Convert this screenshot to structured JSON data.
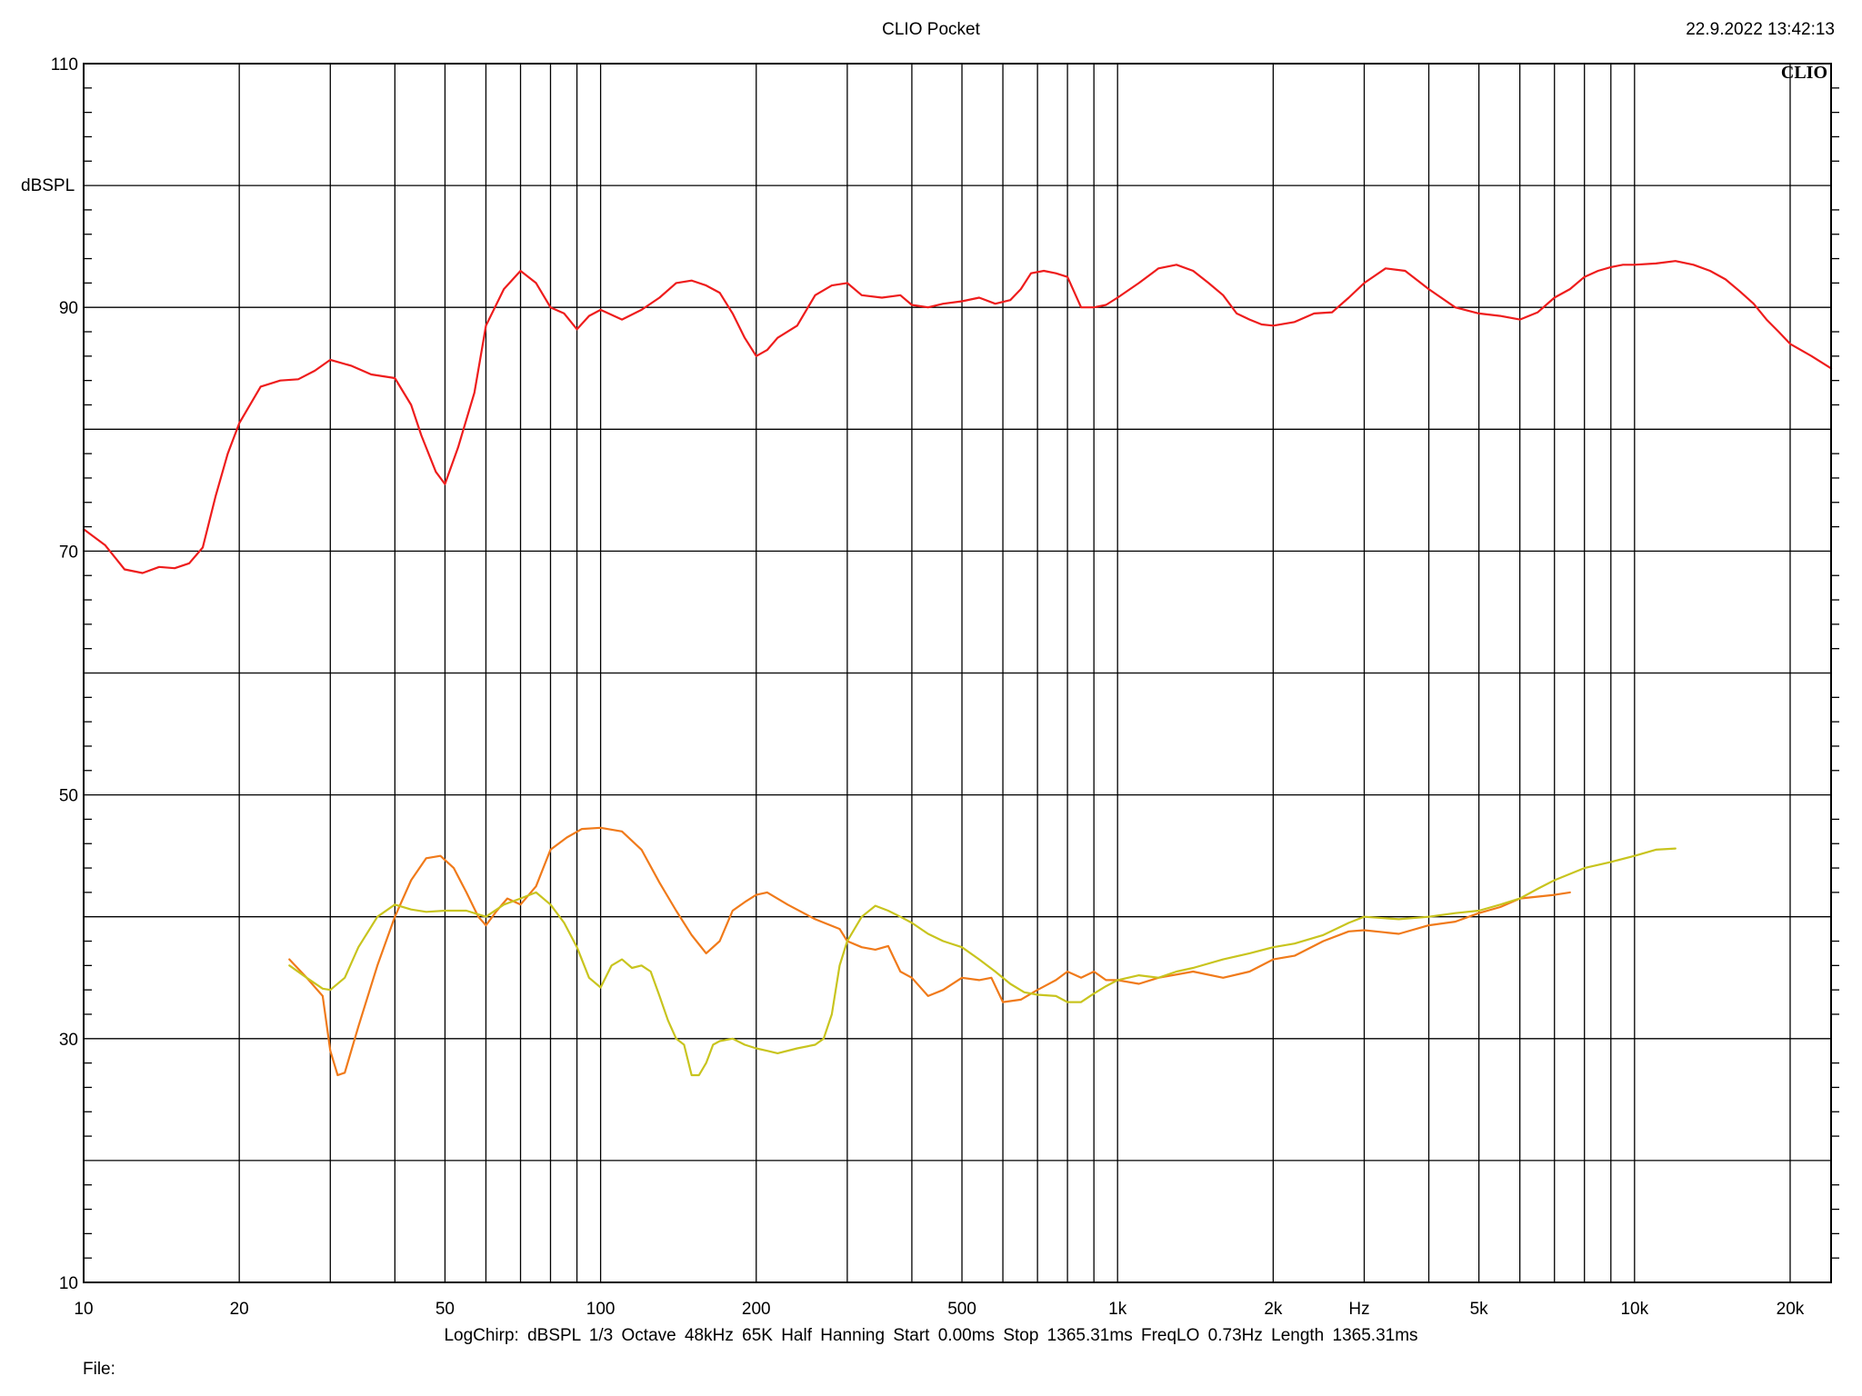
{
  "header": {
    "title": "CLIO Pocket",
    "datetime": "22.9.2022 13:42:13"
  },
  "footer": {
    "params": "LogChirp:  dBSPL   1/3 Octave   48kHz   65K   Half Hanning   Start 0.00ms    Stop 1365.31ms    FreqLO 0.73Hz    Length 1365.31ms",
    "file_label": "File:"
  },
  "chart_data": {
    "type": "line",
    "logo": "CLIO",
    "xlabel": "Hz",
    "ylabel": "dBSPL",
    "x_scale": "log",
    "xlim": [
      10,
      24000
    ],
    "ylim": [
      10,
      110
    ],
    "x_tick_labels": [
      {
        "value": 10,
        "label": "10"
      },
      {
        "value": 20,
        "label": "20"
      },
      {
        "value": 50,
        "label": "50"
      },
      {
        "value": 100,
        "label": "100"
      },
      {
        "value": 200,
        "label": "200"
      },
      {
        "value": 500,
        "label": "500"
      },
      {
        "value": 1000,
        "label": "1k"
      },
      {
        "value": 2000,
        "label": "2k"
      },
      {
        "value": 5000,
        "label": "5k"
      },
      {
        "value": 10000,
        "label": "10k"
      },
      {
        "value": 20000,
        "label": "20k"
      }
    ],
    "y_tick_labels": [
      {
        "value": 110,
        "label": "110"
      },
      {
        "value": 90,
        "label": "90"
      },
      {
        "value": 70,
        "label": "70"
      },
      {
        "value": 50,
        "label": "50"
      },
      {
        "value": 30,
        "label": "30"
      },
      {
        "value": 10,
        "label": "10"
      }
    ],
    "x_gridlines": [
      10,
      20,
      30,
      40,
      50,
      60,
      70,
      80,
      90,
      100,
      200,
      300,
      400,
      500,
      600,
      700,
      800,
      900,
      1000,
      2000,
      3000,
      4000,
      5000,
      6000,
      7000,
      8000,
      9000,
      10000,
      20000
    ],
    "y_gridlines": [
      10,
      20,
      30,
      40,
      50,
      60,
      70,
      80,
      90,
      100,
      110
    ],
    "grid": true,
    "colors": {
      "background": "#ffffff",
      "grid": "#000000"
    },
    "series": [
      {
        "color": "#ee1c1c",
        "points": [
          [
            10,
            71.8
          ],
          [
            11,
            70.5
          ],
          [
            12,
            68.5
          ],
          [
            13,
            68.2
          ],
          [
            14,
            68.7
          ],
          [
            15,
            68.6
          ],
          [
            16,
            69.0
          ],
          [
            17,
            70.3
          ],
          [
            18,
            74.5
          ],
          [
            19,
            78.0
          ],
          [
            20,
            80.5
          ],
          [
            22,
            83.5
          ],
          [
            24,
            84.0
          ],
          [
            26,
            84.1
          ],
          [
            28,
            84.8
          ],
          [
            30,
            85.7
          ],
          [
            33,
            85.2
          ],
          [
            36,
            84.5
          ],
          [
            40,
            84.2
          ],
          [
            43,
            82.0
          ],
          [
            45,
            79.5
          ],
          [
            48,
            76.5
          ],
          [
            50,
            75.5
          ],
          [
            53,
            78.5
          ],
          [
            57,
            83.0
          ],
          [
            60,
            88.5
          ],
          [
            65,
            91.5
          ],
          [
            70,
            93.0
          ],
          [
            75,
            92.0
          ],
          [
            80,
            90.0
          ],
          [
            85,
            89.5
          ],
          [
            90,
            88.2
          ],
          [
            95,
            89.3
          ],
          [
            100,
            89.8
          ],
          [
            110,
            89.0
          ],
          [
            120,
            89.8
          ],
          [
            130,
            90.8
          ],
          [
            140,
            92.0
          ],
          [
            150,
            92.2
          ],
          [
            160,
            91.8
          ],
          [
            170,
            91.2
          ],
          [
            180,
            89.5
          ],
          [
            190,
            87.5
          ],
          [
            200,
            86.0
          ],
          [
            210,
            86.5
          ],
          [
            220,
            87.5
          ],
          [
            240,
            88.5
          ],
          [
            260,
            91.0
          ],
          [
            280,
            91.8
          ],
          [
            300,
            92.0
          ],
          [
            320,
            91.0
          ],
          [
            350,
            90.8
          ],
          [
            380,
            91.0
          ],
          [
            400,
            90.2
          ],
          [
            430,
            90.0
          ],
          [
            460,
            90.3
          ],
          [
            500,
            90.5
          ],
          [
            540,
            90.8
          ],
          [
            580,
            90.3
          ],
          [
            620,
            90.6
          ],
          [
            650,
            91.5
          ],
          [
            680,
            92.8
          ],
          [
            720,
            93.0
          ],
          [
            760,
            92.8
          ],
          [
            800,
            92.5
          ],
          [
            850,
            90.0
          ],
          [
            900,
            90.0
          ],
          [
            950,
            90.2
          ],
          [
            1000,
            90.8
          ],
          [
            1100,
            92.0
          ],
          [
            1200,
            93.2
          ],
          [
            1300,
            93.5
          ],
          [
            1400,
            93.0
          ],
          [
            1500,
            92.0
          ],
          [
            1600,
            91.0
          ],
          [
            1700,
            89.5
          ],
          [
            1800,
            89.0
          ],
          [
            1900,
            88.6
          ],
          [
            2000,
            88.5
          ],
          [
            2200,
            88.8
          ],
          [
            2400,
            89.5
          ],
          [
            2600,
            89.6
          ],
          [
            2800,
            90.8
          ],
          [
            3000,
            92.0
          ],
          [
            3300,
            93.2
          ],
          [
            3600,
            93.0
          ],
          [
            4000,
            91.5
          ],
          [
            4500,
            90.0
          ],
          [
            5000,
            89.5
          ],
          [
            5500,
            89.3
          ],
          [
            6000,
            89.0
          ],
          [
            6500,
            89.6
          ],
          [
            7000,
            90.8
          ],
          [
            7500,
            91.5
          ],
          [
            8000,
            92.5
          ],
          [
            8500,
            93.0
          ],
          [
            9000,
            93.3
          ],
          [
            9500,
            93.5
          ],
          [
            10000,
            93.5
          ],
          [
            11000,
            93.6
          ],
          [
            12000,
            93.8
          ],
          [
            13000,
            93.5
          ],
          [
            14000,
            93.0
          ],
          [
            15000,
            92.3
          ],
          [
            16000,
            91.3
          ],
          [
            17000,
            90.3
          ],
          [
            18000,
            89.0
          ],
          [
            19000,
            88.0
          ],
          [
            20000,
            87.0
          ],
          [
            22000,
            86.0
          ],
          [
            24000,
            85.0
          ]
        ]
      },
      {
        "color": "#f07a1a",
        "points": [
          [
            25,
            36.5
          ],
          [
            27,
            35.0
          ],
          [
            29,
            33.5
          ],
          [
            30,
            29.0
          ],
          [
            31,
            27.0
          ],
          [
            32,
            27.2
          ],
          [
            34,
            31.0
          ],
          [
            37,
            36.0
          ],
          [
            40,
            40.0
          ],
          [
            43,
            43.0
          ],
          [
            46,
            44.8
          ],
          [
            49,
            45.0
          ],
          [
            52,
            44.0
          ],
          [
            55,
            42.0
          ],
          [
            58,
            40.0
          ],
          [
            60,
            39.3
          ],
          [
            63,
            40.5
          ],
          [
            66,
            41.5
          ],
          [
            70,
            41.0
          ],
          [
            75,
            42.5
          ],
          [
            80,
            45.5
          ],
          [
            86,
            46.5
          ],
          [
            92,
            47.2
          ],
          [
            100,
            47.3
          ],
          [
            110,
            47.0
          ],
          [
            120,
            45.5
          ],
          [
            130,
            42.8
          ],
          [
            140,
            40.5
          ],
          [
            150,
            38.5
          ],
          [
            160,
            37.0
          ],
          [
            170,
            38.0
          ],
          [
            180,
            40.5
          ],
          [
            190,
            41.2
          ],
          [
            200,
            41.8
          ],
          [
            210,
            42.0
          ],
          [
            230,
            41.0
          ],
          [
            260,
            39.8
          ],
          [
            290,
            39.0
          ],
          [
            300,
            38.0
          ],
          [
            320,
            37.5
          ],
          [
            340,
            37.3
          ],
          [
            360,
            37.6
          ],
          [
            380,
            35.5
          ],
          [
            400,
            35.0
          ],
          [
            430,
            33.5
          ],
          [
            460,
            34.0
          ],
          [
            500,
            35.0
          ],
          [
            540,
            34.8
          ],
          [
            570,
            35.0
          ],
          [
            600,
            33.0
          ],
          [
            650,
            33.2
          ],
          [
            700,
            34.0
          ],
          [
            760,
            34.8
          ],
          [
            800,
            35.5
          ],
          [
            850,
            35.0
          ],
          [
            900,
            35.5
          ],
          [
            950,
            34.8
          ],
          [
            1000,
            34.8
          ],
          [
            1100,
            34.5
          ],
          [
            1200,
            35.0
          ],
          [
            1400,
            35.5
          ],
          [
            1600,
            35.0
          ],
          [
            1800,
            35.5
          ],
          [
            2000,
            36.5
          ],
          [
            2200,
            36.8
          ],
          [
            2500,
            38.0
          ],
          [
            2800,
            38.8
          ],
          [
            3000,
            38.9
          ],
          [
            3500,
            38.6
          ],
          [
            4000,
            39.3
          ],
          [
            4500,
            39.6
          ],
          [
            5000,
            40.3
          ],
          [
            5500,
            40.8
          ],
          [
            6000,
            41.5
          ],
          [
            7000,
            41.8
          ],
          [
            7500,
            42.0
          ]
        ]
      },
      {
        "color": "#c8c41e",
        "points": [
          [
            25,
            36.0
          ],
          [
            27,
            35.0
          ],
          [
            29,
            34.1
          ],
          [
            30,
            34.0
          ],
          [
            32,
            35.0
          ],
          [
            34,
            37.5
          ],
          [
            37,
            40.0
          ],
          [
            40,
            41.0
          ],
          [
            43,
            40.6
          ],
          [
            46,
            40.4
          ],
          [
            50,
            40.5
          ],
          [
            55,
            40.5
          ],
          [
            60,
            40.0
          ],
          [
            65,
            41.0
          ],
          [
            70,
            41.5
          ],
          [
            75,
            42.0
          ],
          [
            80,
            41.0
          ],
          [
            85,
            39.5
          ],
          [
            90,
            37.5
          ],
          [
            95,
            35.0
          ],
          [
            100,
            34.2
          ],
          [
            105,
            36.0
          ],
          [
            110,
            36.5
          ],
          [
            115,
            35.8
          ],
          [
            120,
            36.0
          ],
          [
            125,
            35.5
          ],
          [
            130,
            33.5
          ],
          [
            135,
            31.5
          ],
          [
            140,
            30.0
          ],
          [
            145,
            29.5
          ],
          [
            150,
            27.0
          ],
          [
            155,
            27.0
          ],
          [
            160,
            28.0
          ],
          [
            165,
            29.5
          ],
          [
            170,
            29.8
          ],
          [
            180,
            30.0
          ],
          [
            190,
            29.5
          ],
          [
            200,
            29.2
          ],
          [
            210,
            29.0
          ],
          [
            220,
            28.8
          ],
          [
            240,
            29.2
          ],
          [
            260,
            29.5
          ],
          [
            270,
            30.0
          ],
          [
            280,
            32.0
          ],
          [
            290,
            36.0
          ],
          [
            300,
            38.0
          ],
          [
            320,
            40.0
          ],
          [
            340,
            40.9
          ],
          [
            360,
            40.5
          ],
          [
            380,
            40.0
          ],
          [
            400,
            39.5
          ],
          [
            430,
            38.6
          ],
          [
            460,
            38.0
          ],
          [
            500,
            37.5
          ],
          [
            540,
            36.5
          ],
          [
            580,
            35.5
          ],
          [
            620,
            34.5
          ],
          [
            660,
            33.8
          ],
          [
            700,
            33.6
          ],
          [
            760,
            33.5
          ],
          [
            800,
            33.0
          ],
          [
            850,
            33.0
          ],
          [
            900,
            33.7
          ],
          [
            950,
            34.3
          ],
          [
            1000,
            34.8
          ],
          [
            1100,
            35.2
          ],
          [
            1200,
            35.0
          ],
          [
            1300,
            35.5
          ],
          [
            1400,
            35.8
          ],
          [
            1600,
            36.5
          ],
          [
            1800,
            37.0
          ],
          [
            2000,
            37.5
          ],
          [
            2200,
            37.8
          ],
          [
            2500,
            38.5
          ],
          [
            2800,
            39.5
          ],
          [
            3000,
            40.0
          ],
          [
            3500,
            39.8
          ],
          [
            4000,
            40.0
          ],
          [
            4500,
            40.3
          ],
          [
            5000,
            40.5
          ],
          [
            5500,
            41.0
          ],
          [
            6000,
            41.5
          ],
          [
            6500,
            42.3
          ],
          [
            7000,
            43.0
          ],
          [
            8000,
            44.0
          ],
          [
            9000,
            44.5
          ],
          [
            10000,
            45.0
          ],
          [
            11000,
            45.5
          ],
          [
            12000,
            45.6
          ]
        ]
      }
    ]
  }
}
